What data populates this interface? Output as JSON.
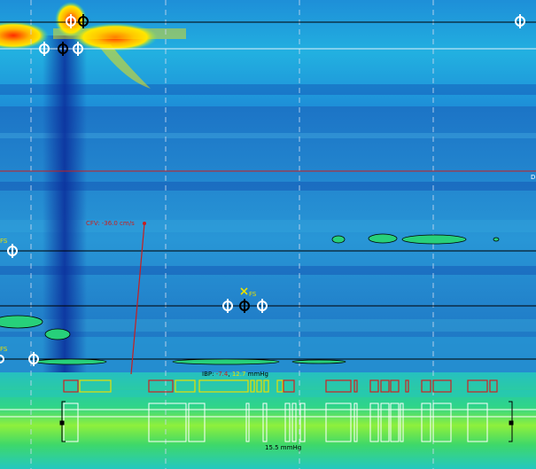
{
  "annotations": {
    "cfv_label": "CFV: -36.0 cm/s",
    "ibp_prefix": "IBP:",
    "ibp_value_1": "-7.4",
    "ibp_separator": ",",
    "ibp_value_2": "12.7",
    "ibp_unit": "mmHg",
    "scale_label": "15.5 mmHg",
    "fs_label": "FS",
    "marker_d": "D"
  },
  "colors": {
    "background_low": "#1e6fc0",
    "background_mid": "#2aa0d8",
    "high_intensity": "#ff2a00",
    "mid_intensity": "#ffe600",
    "low_band": "#24d08a",
    "red_line": "#c81e1e",
    "event_red": "#d02020",
    "event_yellow": "#e8e000",
    "marker_white": "#ffffff",
    "marker_black": "#000000"
  },
  "markers": {
    "top_cursor_icon": "cursor-circle-icon",
    "mid_cursor_icon": "cursor-circle-icon",
    "fs_icon": "x-mark-icon"
  }
}
